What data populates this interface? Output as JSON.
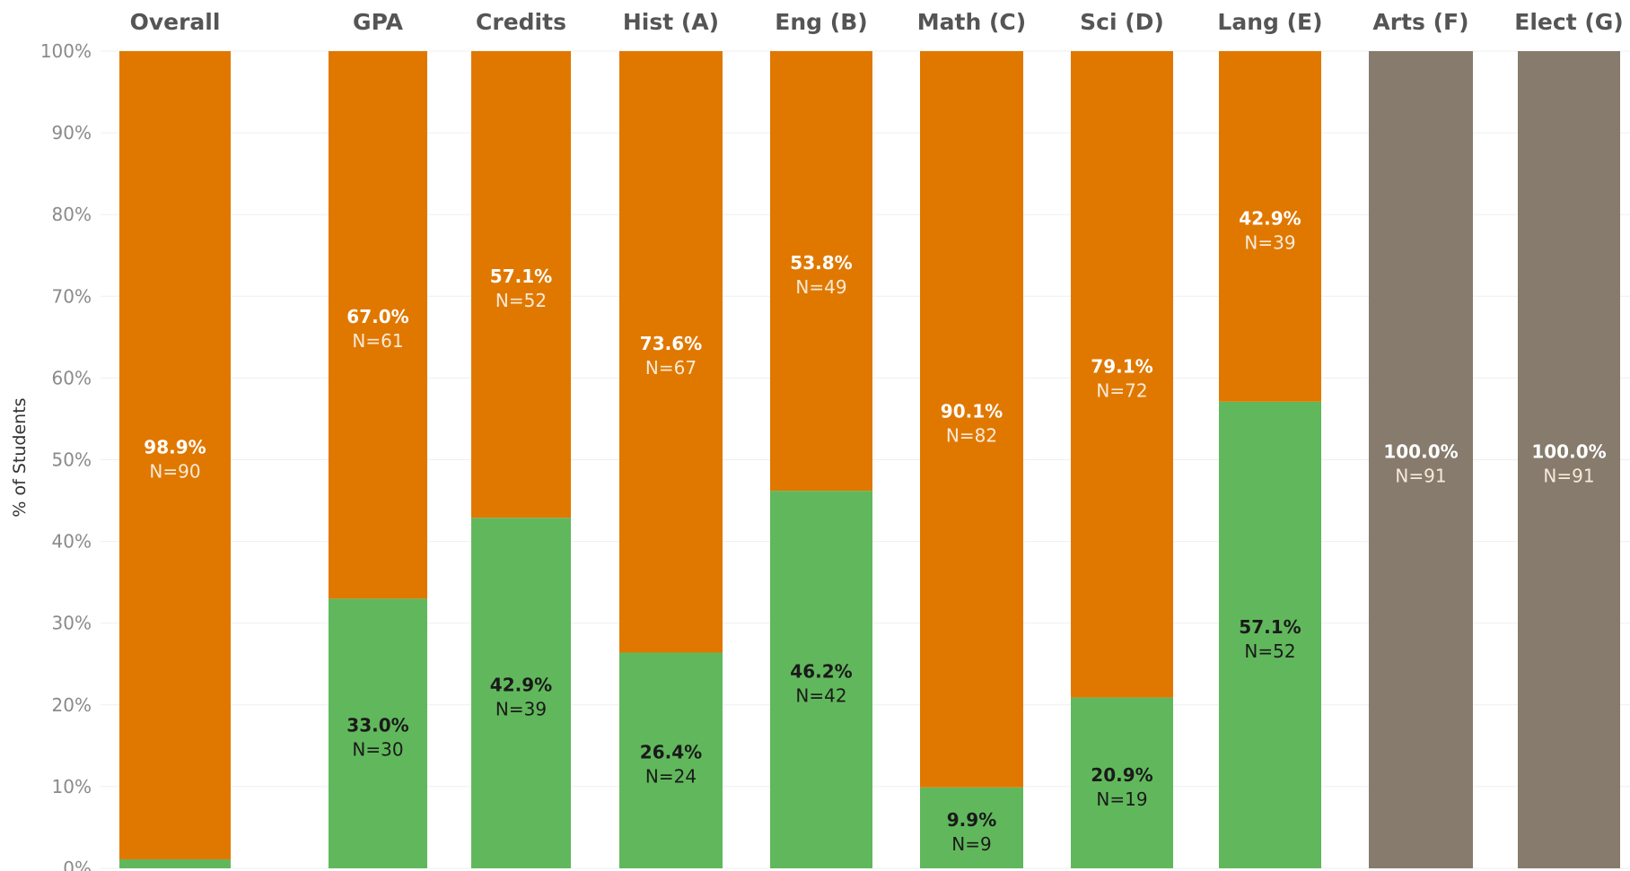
{
  "chart_data": {
    "type": "bar",
    "stacked": true,
    "ylabel": "% of Students",
    "ylim": [
      0,
      100
    ],
    "yticks": [
      "0%",
      "10%",
      "20%",
      "30%",
      "40%",
      "50%",
      "60%",
      "70%",
      "80%",
      "90%",
      "100%"
    ],
    "grid": true,
    "colors": {
      "green": "#61b85c",
      "orange": "#e07800",
      "gray": "#867b6d"
    },
    "categories": [
      "Overall",
      "GPA",
      "Credits",
      "Hist (A)",
      "Eng (B)",
      "Math (C)",
      "Sci (D)",
      "Lang (E)",
      "Arts (F)",
      "Elect (G)"
    ],
    "series": [
      {
        "color": "green",
        "values": [
          1.1,
          33.0,
          42.9,
          26.4,
          46.2,
          9.9,
          20.9,
          57.1,
          0,
          0
        ],
        "pct_labels": [
          "",
          "33.0%",
          "42.9%",
          "26.4%",
          "46.2%",
          "9.9%",
          "20.9%",
          "57.1%",
          "",
          ""
        ],
        "n_labels": [
          "",
          "N=30",
          "N=39",
          "N=24",
          "N=42",
          "N=9",
          "N=19",
          "N=52",
          "",
          ""
        ]
      },
      {
        "color": "orange",
        "values": [
          98.9,
          67.0,
          57.1,
          73.6,
          53.8,
          90.1,
          79.1,
          42.9,
          0,
          0
        ],
        "pct_labels": [
          "98.9%",
          "67.0%",
          "57.1%",
          "73.6%",
          "53.8%",
          "90.1%",
          "79.1%",
          "42.9%",
          "",
          ""
        ],
        "n_labels": [
          "N=90",
          "N=61",
          "N=52",
          "N=67",
          "N=49",
          "N=82",
          "N=72",
          "N=39",
          "",
          ""
        ]
      },
      {
        "color": "gray",
        "values": [
          0,
          0,
          0,
          0,
          0,
          0,
          0,
          0,
          100.0,
          100.0
        ],
        "pct_labels": [
          "",
          "",
          "",
          "",
          "",
          "",
          "",
          "",
          "100.0%",
          "100.0%"
        ],
        "n_labels": [
          "",
          "",
          "",
          "",
          "",
          "",
          "",
          "",
          "N=91",
          "N=91"
        ]
      }
    ]
  }
}
